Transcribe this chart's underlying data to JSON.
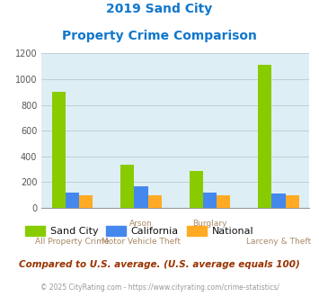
{
  "title_line1": "2019 Sand City",
  "title_line2": "Property Crime Comparison",
  "sand_city": [
    900,
    335,
    290,
    1115
  ],
  "california": [
    120,
    165,
    120,
    110
  ],
  "national": [
    100,
    100,
    100,
    100
  ],
  "bar_colors": {
    "sand_city": "#88cc00",
    "california": "#4488ee",
    "national": "#ffaa22"
  },
  "ylim": [
    0,
    1200
  ],
  "yticks": [
    0,
    200,
    400,
    600,
    800,
    1000,
    1200
  ],
  "legend_labels": [
    "Sand City",
    "California",
    "National"
  ],
  "top_xlabels": [
    "",
    "Arson",
    "Burglary",
    ""
  ],
  "bottom_xlabels": [
    "All Property Crime",
    "Motor Vehicle Theft",
    "",
    "Larceny & Theft"
  ],
  "note": "Compared to U.S. average. (U.S. average equals 100)",
  "footer": "© 2025 CityRating.com - https://www.cityrating.com/crime-statistics/",
  "title_color": "#1177cc",
  "note_color": "#993300",
  "footer_color": "#999999",
  "axis_label_color": "#aa8866",
  "bg_color": "#ddeef4",
  "fig_bg": "#ffffff",
  "grid_color": "#bbcccc"
}
